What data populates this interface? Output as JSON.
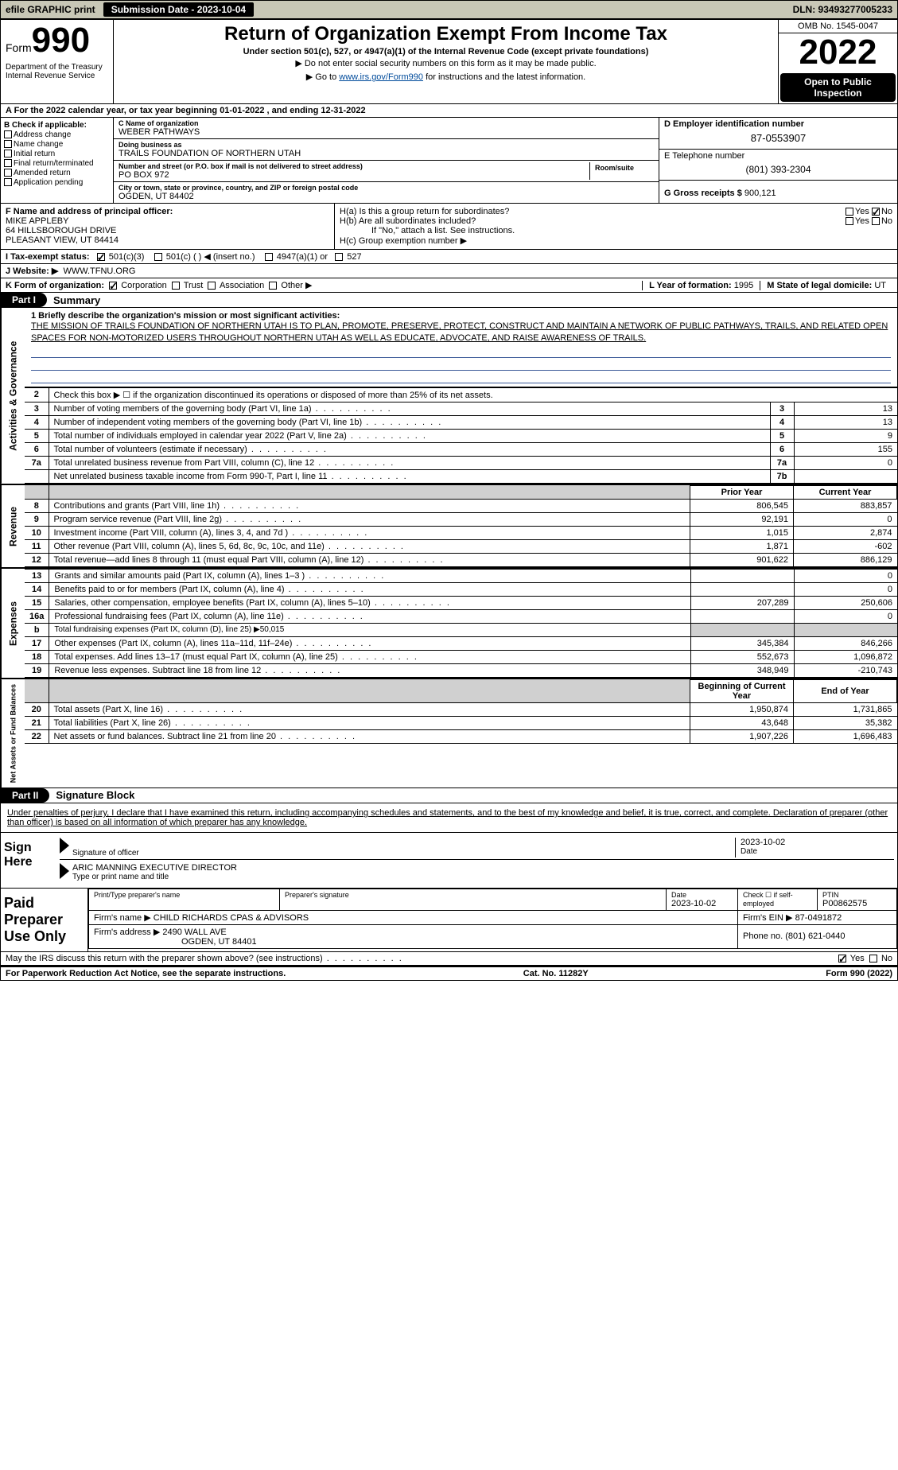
{
  "topbar": {
    "efile": "efile GRAPHIC print",
    "subdate_lbl": "Submission Date - 2023-10-04",
    "dln_lbl": "DLN: 93493277005233"
  },
  "header": {
    "form_prefix": "Form",
    "form_no": "990",
    "dept": "Department of the Treasury\nInternal Revenue Service",
    "title": "Return of Organization Exempt From Income Tax",
    "sub": "Under section 501(c), 527, or 4947(a)(1) of the Internal Revenue Code (except private foundations)",
    "note": "▶ Do not enter social security numbers on this form as it may be made public.",
    "link_pre": "▶ Go to ",
    "link_url": "www.irs.gov/Form990",
    "link_post": " for instructions and the latest information.",
    "omb": "OMB No. 1545-0047",
    "year": "2022",
    "open": "Open to Public Inspection"
  },
  "row_a": "A For the 2022 calendar year, or tax year beginning 01-01-2022    , and ending 12-31-2022",
  "box_b": {
    "hdr": "B Check if applicable:",
    "items": [
      "Address change",
      "Name change",
      "Initial return",
      "Final return/terminated",
      "Amended return",
      "Application pending"
    ]
  },
  "box_c": {
    "name_lbl": "C Name of organization",
    "name": "WEBER PATHWAYS",
    "dba_lbl": "Doing business as",
    "dba": "TRAILS FOUNDATION OF NORTHERN UTAH",
    "addr_lbl": "Number and street (or P.O. box if mail is not delivered to street address)",
    "room_lbl": "Room/suite",
    "addr": "PO BOX 972",
    "city_lbl": "City or town, state or province, country, and ZIP or foreign postal code",
    "city": "OGDEN, UT  84402"
  },
  "box_d": {
    "lbl": "D Employer identification number",
    "val": "87-0553907"
  },
  "box_e": {
    "lbl": "E Telephone number",
    "val": "(801) 393-2304"
  },
  "box_g": {
    "lbl": "G Gross receipts $",
    "val": "900,121"
  },
  "box_f": {
    "lbl": "F Name and address of principal officer:",
    "name": "MIKE APPLEBY",
    "addr1": "64 HILLSBOROUGH DRIVE",
    "addr2": "PLEASANT VIEW, UT  84414"
  },
  "box_h": {
    "a": "H(a)  Is this a group return for subordinates?",
    "b": "H(b)  Are all subordinates included?",
    "b_note": "If \"No,\" attach a list. See instructions.",
    "c": "H(c)  Group exemption number ▶",
    "yes": "Yes",
    "no": "No"
  },
  "box_i": {
    "lbl": "I  Tax-exempt status:",
    "o1": "501(c)(3)",
    "o2": "501(c) (  ) ◀ (insert no.)",
    "o3": "4947(a)(1) or",
    "o4": "527"
  },
  "box_j": {
    "lbl": "J  Website: ▶",
    "val": "WWW.TFNU.ORG"
  },
  "box_k": {
    "lbl": "K Form of organization:",
    "o1": "Corporation",
    "o2": "Trust",
    "o3": "Association",
    "o4": "Other ▶"
  },
  "box_l": {
    "lbl": "L Year of formation:",
    "val": "1995"
  },
  "box_m": {
    "lbl": "M State of legal domicile:",
    "val": "UT"
  },
  "part1": {
    "hdr": "Part I",
    "title": "Summary"
  },
  "mission": {
    "lbl": "1  Briefly describe the organization's mission or most significant activities:",
    "txt": "THE MISSION OF TRAILS FOUNDATION OF NORTHERN UTAH IS TO PLAN, PROMOTE, PRESERVE, PROTECT, CONSTRUCT AND MAINTAIN A NETWORK OF PUBLIC PATHWAYS, TRAILS, AND RELATED OPEN SPACES FOR NON-MOTORIZED USERS THROUGHOUT NORTHERN UTAH AS WELL AS EDUCATE, ADVOCATE, AND RAISE AWARENESS OF TRAILS."
  },
  "gov_rows": [
    {
      "n": "2",
      "t": "Check this box ▶ ☐  if the organization discontinued its operations or disposed of more than 25% of its net assets.",
      "r": "",
      "v": ""
    },
    {
      "n": "3",
      "t": "Number of voting members of the governing body (Part VI, line 1a)",
      "r": "3",
      "v": "13"
    },
    {
      "n": "4",
      "t": "Number of independent voting members of the governing body (Part VI, line 1b)",
      "r": "4",
      "v": "13"
    },
    {
      "n": "5",
      "t": "Total number of individuals employed in calendar year 2022 (Part V, line 2a)",
      "r": "5",
      "v": "9"
    },
    {
      "n": "6",
      "t": "Total number of volunteers (estimate if necessary)",
      "r": "6",
      "v": "155"
    },
    {
      "n": "7a",
      "t": "Total unrelated business revenue from Part VIII, column (C), line 12",
      "r": "7a",
      "v": "0"
    },
    {
      "n": "",
      "t": "Net unrelated business taxable income from Form 990-T, Part I, line 11",
      "r": "7b",
      "v": ""
    }
  ],
  "col_hdrs": {
    "prior": "Prior Year",
    "current": "Current Year"
  },
  "rev_rows": [
    {
      "n": "8",
      "t": "Contributions and grants (Part VIII, line 1h)",
      "p": "806,545",
      "c": "883,857"
    },
    {
      "n": "9",
      "t": "Program service revenue (Part VIII, line 2g)",
      "p": "92,191",
      "c": "0"
    },
    {
      "n": "10",
      "t": "Investment income (Part VIII, column (A), lines 3, 4, and 7d )",
      "p": "1,015",
      "c": "2,874"
    },
    {
      "n": "11",
      "t": "Other revenue (Part VIII, column (A), lines 5, 6d, 8c, 9c, 10c, and 11e)",
      "p": "1,871",
      "c": "-602"
    },
    {
      "n": "12",
      "t": "Total revenue—add lines 8 through 11 (must equal Part VIII, column (A), line 12)",
      "p": "901,622",
      "c": "886,129"
    }
  ],
  "exp_rows": [
    {
      "n": "13",
      "t": "Grants and similar amounts paid (Part IX, column (A), lines 1–3 )",
      "p": "",
      "c": "0"
    },
    {
      "n": "14",
      "t": "Benefits paid to or for members (Part IX, column (A), line 4)",
      "p": "",
      "c": "0"
    },
    {
      "n": "15",
      "t": "Salaries, other compensation, employee benefits (Part IX, column (A), lines 5–10)",
      "p": "207,289",
      "c": "250,606"
    },
    {
      "n": "16a",
      "t": "Professional fundraising fees (Part IX, column (A), line 11e)",
      "p": "",
      "c": "0"
    },
    {
      "n": "b",
      "t": "Total fundraising expenses (Part IX, column (D), line 25) ▶50,015",
      "p": "grey",
      "c": "grey"
    },
    {
      "n": "17",
      "t": "Other expenses (Part IX, column (A), lines 11a–11d, 11f–24e)",
      "p": "345,384",
      "c": "846,266"
    },
    {
      "n": "18",
      "t": "Total expenses. Add lines 13–17 (must equal Part IX, column (A), line 25)",
      "p": "552,673",
      "c": "1,096,872"
    },
    {
      "n": "19",
      "t": "Revenue less expenses. Subtract line 18 from line 12",
      "p": "348,949",
      "c": "-210,743"
    }
  ],
  "net_hdrs": {
    "beg": "Beginning of Current Year",
    "end": "End of Year"
  },
  "net_rows": [
    {
      "n": "20",
      "t": "Total assets (Part X, line 16)",
      "p": "1,950,874",
      "c": "1,731,865"
    },
    {
      "n": "21",
      "t": "Total liabilities (Part X, line 26)",
      "p": "43,648",
      "c": "35,382"
    },
    {
      "n": "22",
      "t": "Net assets or fund balances. Subtract line 21 from line 20",
      "p": "1,907,226",
      "c": "1,696,483"
    }
  ],
  "side_tabs": {
    "gov": "Activities & Governance",
    "rev": "Revenue",
    "exp": "Expenses",
    "net": "Net Assets or Fund Balances"
  },
  "part2": {
    "hdr": "Part II",
    "title": "Signature Block"
  },
  "sig": {
    "decl": "Under penalties of perjury, I declare that I have examined this return, including accompanying schedules and statements, and to the best of my knowledge and belief, it is true, correct, and complete. Declaration of preparer (other than officer) is based on all information of which preparer has any knowledge.",
    "sign_here": "Sign Here",
    "sig_lbl": "Signature of officer",
    "date_lbl": "Date",
    "date": "2023-10-02",
    "name": "ARIC MANNING  EXECUTIVE DIRECTOR",
    "name_lbl": "Type or print name and title"
  },
  "paid": {
    "title": "Paid Preparer Use Only",
    "r1": {
      "c1_lbl": "Print/Type preparer's name",
      "c2_lbl": "Preparer's signature",
      "c3_lbl": "Date",
      "c3": "2023-10-02",
      "c4_lbl": "Check ☐ if self-employed",
      "c5_lbl": "PTIN",
      "c5": "P00862575"
    },
    "r2": {
      "lbl": "Firm's name      ▶",
      "val": "CHILD RICHARDS CPAS & ADVISORS",
      "ein_lbl": "Firm's EIN ▶",
      "ein": "87-0491872"
    },
    "r3": {
      "lbl": "Firm's address ▶",
      "val1": "2490 WALL AVE",
      "val2": "OGDEN, UT  84401",
      "ph_lbl": "Phone no.",
      "ph": "(801) 621-0440"
    }
  },
  "may_irs": "May the IRS discuss this return with the preparer shown above? (see instructions)",
  "footer": {
    "left": "For Paperwork Reduction Act Notice, see the separate instructions.",
    "mid": "Cat. No. 11282Y",
    "right": "Form 990 (2022)"
  }
}
